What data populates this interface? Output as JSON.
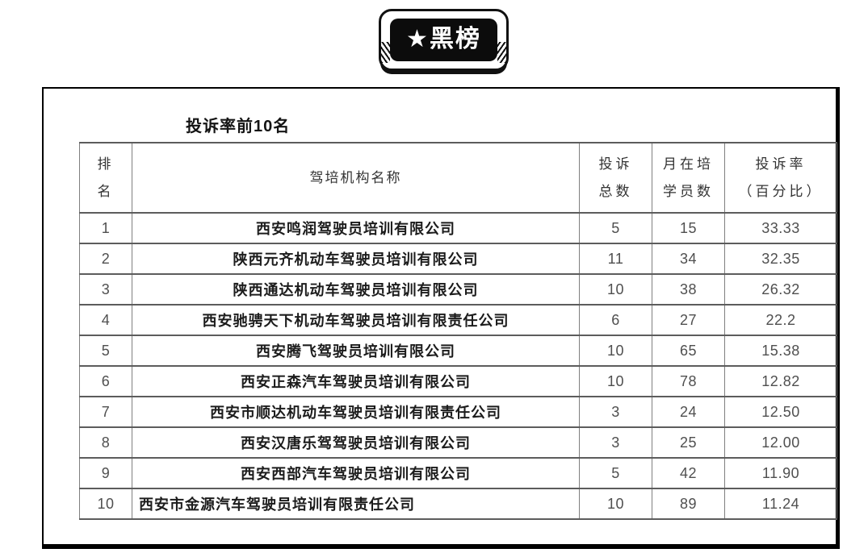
{
  "badge": {
    "label": "★黑榜"
  },
  "table": {
    "title": "投诉率前10名",
    "columns": {
      "rank": "排\n名",
      "name": "驾培机构名称",
      "complaints": "投诉\n总数",
      "students": "月在培\n学员数",
      "rate": "投诉率\n（百分比）"
    },
    "rows": [
      {
        "rank": "1",
        "name": "西安鸣润驾驶员培训有限公司",
        "complaints": "5",
        "students": "15",
        "rate": "33.33"
      },
      {
        "rank": "2",
        "name": "陕西元齐机动车驾驶员培训有限公司",
        "complaints": "11",
        "students": "34",
        "rate": "32.35"
      },
      {
        "rank": "3",
        "name": "陕西通达机动车驾驶员培训有限公司",
        "complaints": "10",
        "students": "38",
        "rate": "26.32"
      },
      {
        "rank": "4",
        "name": "西安驰骋天下机动车驾驶员培训有限责任公司",
        "complaints": "6",
        "students": "27",
        "rate": "22.2"
      },
      {
        "rank": "5",
        "name": "西安腾飞驾驶员培训有限公司",
        "complaints": "10",
        "students": "65",
        "rate": "15.38"
      },
      {
        "rank": "6",
        "name": "西安正森汽车驾驶员培训有限公司",
        "complaints": "10",
        "students": "78",
        "rate": "12.82"
      },
      {
        "rank": "7",
        "name": "西安市顺达机动车驾驶员培训有限责任公司",
        "complaints": "3",
        "students": "24",
        "rate": "12.50"
      },
      {
        "rank": "8",
        "name": "西安汉唐乐驾驾驶员培训有限公司",
        "complaints": "3",
        "students": "25",
        "rate": "12.00"
      },
      {
        "rank": "9",
        "name": "西安西部汽车驾驶员培训有限公司",
        "complaints": "5",
        "students": "42",
        "rate": "11.90"
      },
      {
        "rank": "10",
        "name": "西安市金源汽车驾驶员培训有限责任公司",
        "complaints": "10",
        "students": "89",
        "rate": "11.24"
      }
    ]
  },
  "colors": {
    "badge_bg": "#0c0c0c",
    "badge_text": "#ffffff",
    "box_border": "#000000",
    "table_border": "#7f7f7f",
    "row_line": "#5c5c5c",
    "name_text": "#1c1c1c",
    "number_text": "#4f4f4f"
  }
}
